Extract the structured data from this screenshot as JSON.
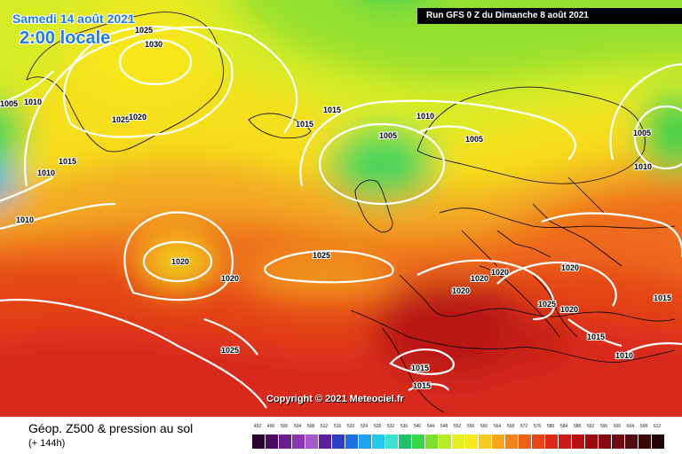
{
  "header": {
    "date_label": "Samedi 14 août 2021",
    "time_label": "2:00 locale",
    "run_label": "Run GFS 0 Z du Dimanche 8 août 2021"
  },
  "map": {
    "copyright": "Copyright © 2021 Meteociel.fr",
    "isobar_labels": [
      "1025",
      "1030",
      "1005",
      "1010",
      "1025",
      "1020",
      "1015",
      "1015",
      "1010",
      "1010",
      "1005",
      "1005",
      "1005",
      "1010",
      "1010",
      "1015",
      "1025",
      "1020",
      "1025",
      "1020",
      "1020",
      "1020",
      "1020",
      "1020",
      "1015",
      "1010",
      "1015",
      "1015",
      "1025",
      "1015"
    ]
  },
  "footer": {
    "title": "Géop. Z500 & pression au sol",
    "subtitle": "(+ 144h)"
  },
  "legend": {
    "labels": [
      "492",
      "496",
      "500",
      "504",
      "508",
      "512",
      "516",
      "520",
      "524",
      "528",
      "532",
      "536",
      "540",
      "544",
      "548",
      "552",
      "556",
      "560",
      "564",
      "568",
      "572",
      "576",
      "580",
      "584",
      "588",
      "592",
      "596",
      "600",
      "604",
      "608",
      "612"
    ],
    "colors": [
      "#2a0030",
      "#4b0a62",
      "#6b1f8e",
      "#8c33b0",
      "#a659c8",
      "#5d1f9e",
      "#2b3ec4",
      "#1f6fe0",
      "#1fa3ef",
      "#24c8ef",
      "#40e0d0",
      "#1ec36f",
      "#3ad64a",
      "#7be030",
      "#b8ec28",
      "#e4f020",
      "#f6ea1c",
      "#f7c91d",
      "#f6a71b",
      "#f3851a",
      "#ee6218",
      "#e84319",
      "#dd2a1a",
      "#cc1a1a",
      "#b70f13",
      "#a0080f",
      "#880810",
      "#6e0a12",
      "#520a10",
      "#3a070b",
      "#200406"
    ]
  }
}
